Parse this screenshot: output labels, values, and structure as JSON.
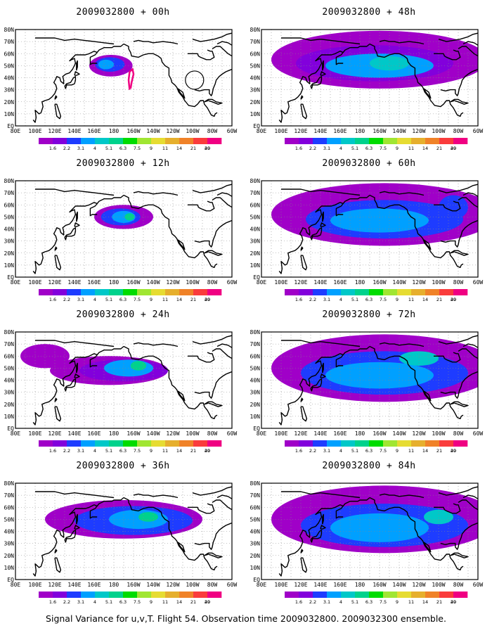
{
  "footer": "Signal Variance for u,v,T. Flight 54. Observation time 2009032800. 2009032300 ensemble.",
  "lat_labels": [
    "EQ",
    "10N",
    "20N",
    "30N",
    "40N",
    "50N",
    "60N",
    "70N",
    "80N"
  ],
  "lon_labels": [
    "80E",
    "100E",
    "120E",
    "140E",
    "160E",
    "180",
    "160W",
    "140W",
    "120W",
    "100W",
    "80W",
    "60W"
  ],
  "legend": {
    "labels": [
      "1.6",
      "2.2",
      "3.1",
      "4",
      "5.1",
      "6.3",
      "7.5",
      "9",
      "11",
      "14",
      "21",
      "29",
      "40"
    ],
    "colors": [
      "#a000c8",
      "#8200dc",
      "#1e3cff",
      "#00a0ff",
      "#00c8c8",
      "#00d28c",
      "#00dc00",
      "#a0e632",
      "#e6dc32",
      "#e6af2d",
      "#f08228",
      "#fa3c3c",
      "#f00082"
    ]
  },
  "panels": [
    {
      "title": "2009032800 + 00h",
      "lead_hours": 0
    },
    {
      "title": "2009032800 + 48h",
      "lead_hours": 48
    },
    {
      "title": "2009032800 + 12h",
      "lead_hours": 12
    },
    {
      "title": "2009032800 + 60h",
      "lead_hours": 60
    },
    {
      "title": "2009032800 + 24h",
      "lead_hours": 24
    },
    {
      "title": "2009032800 + 72h",
      "lead_hours": 72
    },
    {
      "title": "2009032800 + 36h",
      "lead_hours": 36
    },
    {
      "title": "2009032800 + 84h",
      "lead_hours": 84
    }
  ]
}
